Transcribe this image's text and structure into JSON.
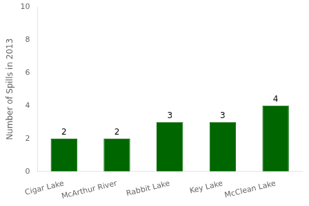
{
  "chart_data": {
    "type": "bar",
    "categories": [
      "Cigar Lake",
      "McArthur River",
      "Rabbit Lake",
      "Key Lake",
      "McClean Lake"
    ],
    "values": [
      2,
      2,
      3,
      3,
      4
    ],
    "color": "#006600",
    "ylabel": "Number of Spills in 2013",
    "ylim": [
      0,
      10
    ],
    "yticks": [
      0,
      2,
      4,
      6,
      8,
      10
    ],
    "grid": false,
    "data_labels": true
  }
}
